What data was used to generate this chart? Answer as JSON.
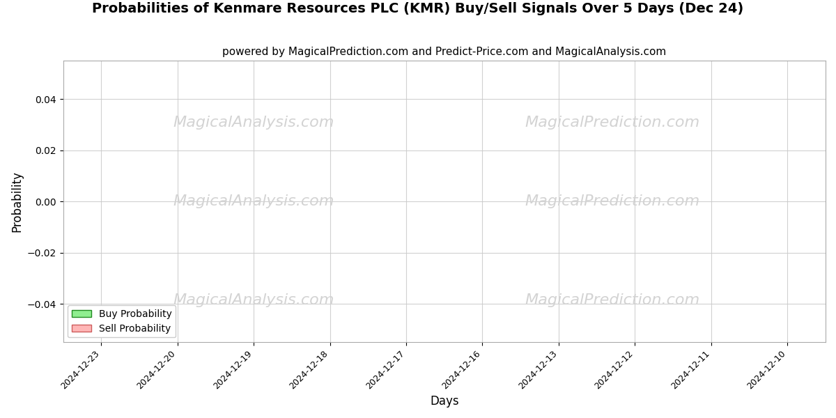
{
  "title": "Probabilities of Kenmare Resources PLC (KMR) Buy/Sell Signals Over 5 Days (Dec 24)",
  "subtitle": "powered by MagicalPrediction.com and Predict-Price.com and MagicalAnalysis.com",
  "xlabel": "Days",
  "ylabel": "Probability",
  "ylim": [
    -0.055,
    0.055
  ],
  "yticks": [
    -0.04,
    -0.02,
    0.0,
    0.02,
    0.04
  ],
  "x_dates": [
    "2024-12-23",
    "2024-12-20",
    "2024-12-19",
    "2024-12-18",
    "2024-12-17",
    "2024-12-16",
    "2024-12-13",
    "2024-12-12",
    "2024-12-11",
    "2024-12-10"
  ],
  "buy_color": "#90EE90",
  "sell_color": "#FFB6B6",
  "buy_edge_color": "#228B22",
  "sell_edge_color": "#CD5C5C",
  "background_color": "#ffffff",
  "grid_color": "#cccccc",
  "watermark_texts": [
    "MagicalAnalysis.com",
    "MagicalPrediction.com"
  ],
  "watermark_color": "#d3d3d3",
  "title_fontsize": 14,
  "subtitle_fontsize": 11,
  "legend_labels": [
    "Buy Probability",
    "Sell Probability"
  ]
}
